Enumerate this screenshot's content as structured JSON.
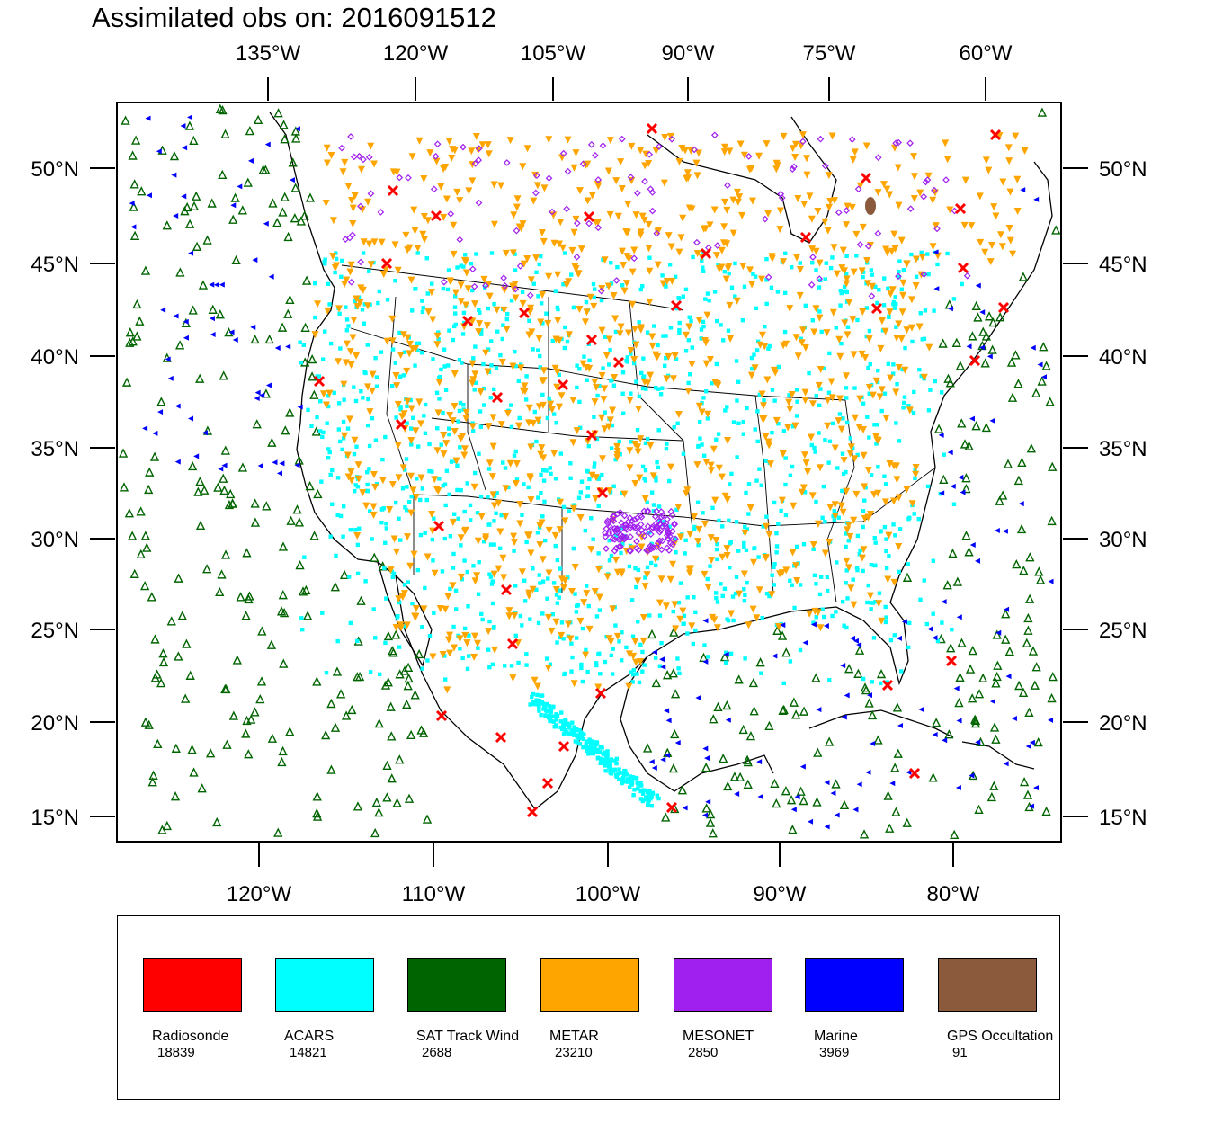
{
  "title": "Assimilated obs on: 2016091512",
  "top_axis_labels": [
    "135°W",
    "120°W",
    "105°W",
    "90°W",
    "75°W",
    "60°W"
  ],
  "bottom_axis_labels": [
    "120°W",
    "110°W",
    "100°W",
    "90°W",
    "80°W"
  ],
  "lat_labels": [
    "50°N",
    "45°N",
    "40°N",
    "35°N",
    "30°N",
    "25°N",
    "20°N",
    "15°N"
  ],
  "legend": [
    {
      "label": "Radiosonde",
      "count": "18839",
      "color": "#ff0000"
    },
    {
      "label": "ACARS",
      "count": "14821",
      "color": "#00ffff"
    },
    {
      "label": "SAT Track Wind",
      "count": "2688",
      "color": "#006400"
    },
    {
      "label": "METAR",
      "count": "23210",
      "color": "#ffa500"
    },
    {
      "label": "MESONET",
      "count": "2850",
      "color": "#a020f0"
    },
    {
      "label": "Marine",
      "count": "3969",
      "color": "#0000ff"
    },
    {
      "label": "GPS Occultation",
      "count": "91",
      "color": "#8b5a3c"
    }
  ],
  "colors": {
    "radiosonde": "#ff0000",
    "acars": "#00ffff",
    "sat_track_wind": "#006400",
    "metar": "#ffa500",
    "mesonet": "#a020f0",
    "marine": "#0000ff",
    "gps": "#8b5a3c"
  }
}
